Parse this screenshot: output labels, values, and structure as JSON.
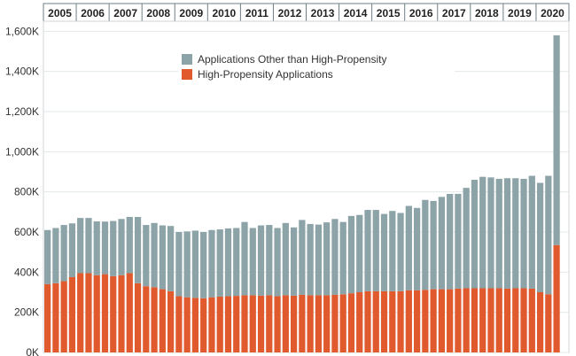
{
  "chart_data": {
    "type": "bar",
    "stacked": true,
    "title": "",
    "xlabel": "",
    "ylabel": "",
    "ylim": [
      0,
      1650000
    ],
    "y_ticks": [
      0,
      200000,
      400000,
      600000,
      800000,
      1000000,
      1200000,
      1400000,
      1600000
    ],
    "y_tick_labels": [
      "0K",
      "200K",
      "400K",
      "600K",
      "800K",
      "1,000K",
      "1,200K",
      "1,400K",
      "1,600K"
    ],
    "x_grouping": "years along top axis, four quarterly bars per year",
    "years": [
      "2005",
      "2006",
      "2007",
      "2008",
      "2009",
      "2010",
      "2011",
      "2012",
      "2013",
      "2014",
      "2015",
      "2016",
      "2017",
      "2018",
      "2019",
      "2020"
    ],
    "categories": [
      "2005Q1",
      "2005Q2",
      "2005Q3",
      "2005Q4",
      "2006Q1",
      "2006Q2",
      "2006Q3",
      "2006Q4",
      "2007Q1",
      "2007Q2",
      "2007Q3",
      "2007Q4",
      "2008Q1",
      "2008Q2",
      "2008Q3",
      "2008Q4",
      "2009Q1",
      "2009Q2",
      "2009Q3",
      "2009Q4",
      "2010Q1",
      "2010Q2",
      "2010Q3",
      "2010Q4",
      "2011Q1",
      "2011Q2",
      "2011Q3",
      "2011Q4",
      "2012Q1",
      "2012Q2",
      "2012Q3",
      "2012Q4",
      "2013Q1",
      "2013Q2",
      "2013Q3",
      "2013Q4",
      "2014Q1",
      "2014Q2",
      "2014Q3",
      "2014Q4",
      "2015Q1",
      "2015Q2",
      "2015Q3",
      "2015Q4",
      "2016Q1",
      "2016Q2",
      "2016Q3",
      "2016Q4",
      "2017Q1",
      "2017Q2",
      "2017Q3",
      "2017Q4",
      "2018Q1",
      "2018Q2",
      "2018Q3",
      "2018Q4",
      "2019Q1",
      "2019Q2",
      "2019Q3",
      "2019Q4",
      "2020Q1",
      "2020Q2",
      "2020Q3"
    ],
    "legend_position": "top-center",
    "series": [
      {
        "name": "High-Propensity Applications",
        "color": "#e05a2e",
        "values": [
          340000,
          345000,
          355000,
          375000,
          395000,
          395000,
          385000,
          390000,
          380000,
          385000,
          395000,
          345000,
          330000,
          325000,
          315000,
          305000,
          280000,
          275000,
          272000,
          270000,
          275000,
          278000,
          280000,
          282000,
          285000,
          285000,
          283000,
          285000,
          280000,
          285000,
          283000,
          287000,
          285000,
          285000,
          285000,
          287000,
          290000,
          295000,
          300000,
          305000,
          305000,
          305000,
          305000,
          305000,
          310000,
          310000,
          312000,
          315000,
          315000,
          315000,
          318000,
          320000,
          320000,
          320000,
          320000,
          320000,
          318000,
          320000,
          320000,
          318000,
          300000,
          290000,
          535000
        ]
      },
      {
        "name": "Applications Other than High-Propensity",
        "color": "#8ca3a8",
        "values": [
          270000,
          275000,
          280000,
          268000,
          275000,
          275000,
          268000,
          262000,
          275000,
          280000,
          280000,
          330000,
          305000,
          320000,
          318000,
          325000,
          320000,
          328000,
          335000,
          330000,
          335000,
          335000,
          338000,
          338000,
          365000,
          335000,
          350000,
          350000,
          340000,
          360000,
          340000,
          373000,
          355000,
          352000,
          363000,
          378000,
          360000,
          385000,
          385000,
          405000,
          405000,
          385000,
          400000,
          390000,
          420000,
          410000,
          448000,
          440000,
          460000,
          475000,
          472000,
          500000,
          540000,
          555000,
          552000,
          545000,
          550000,
          548000,
          545000,
          562000,
          545000,
          590000,
          1045000
        ]
      }
    ]
  }
}
